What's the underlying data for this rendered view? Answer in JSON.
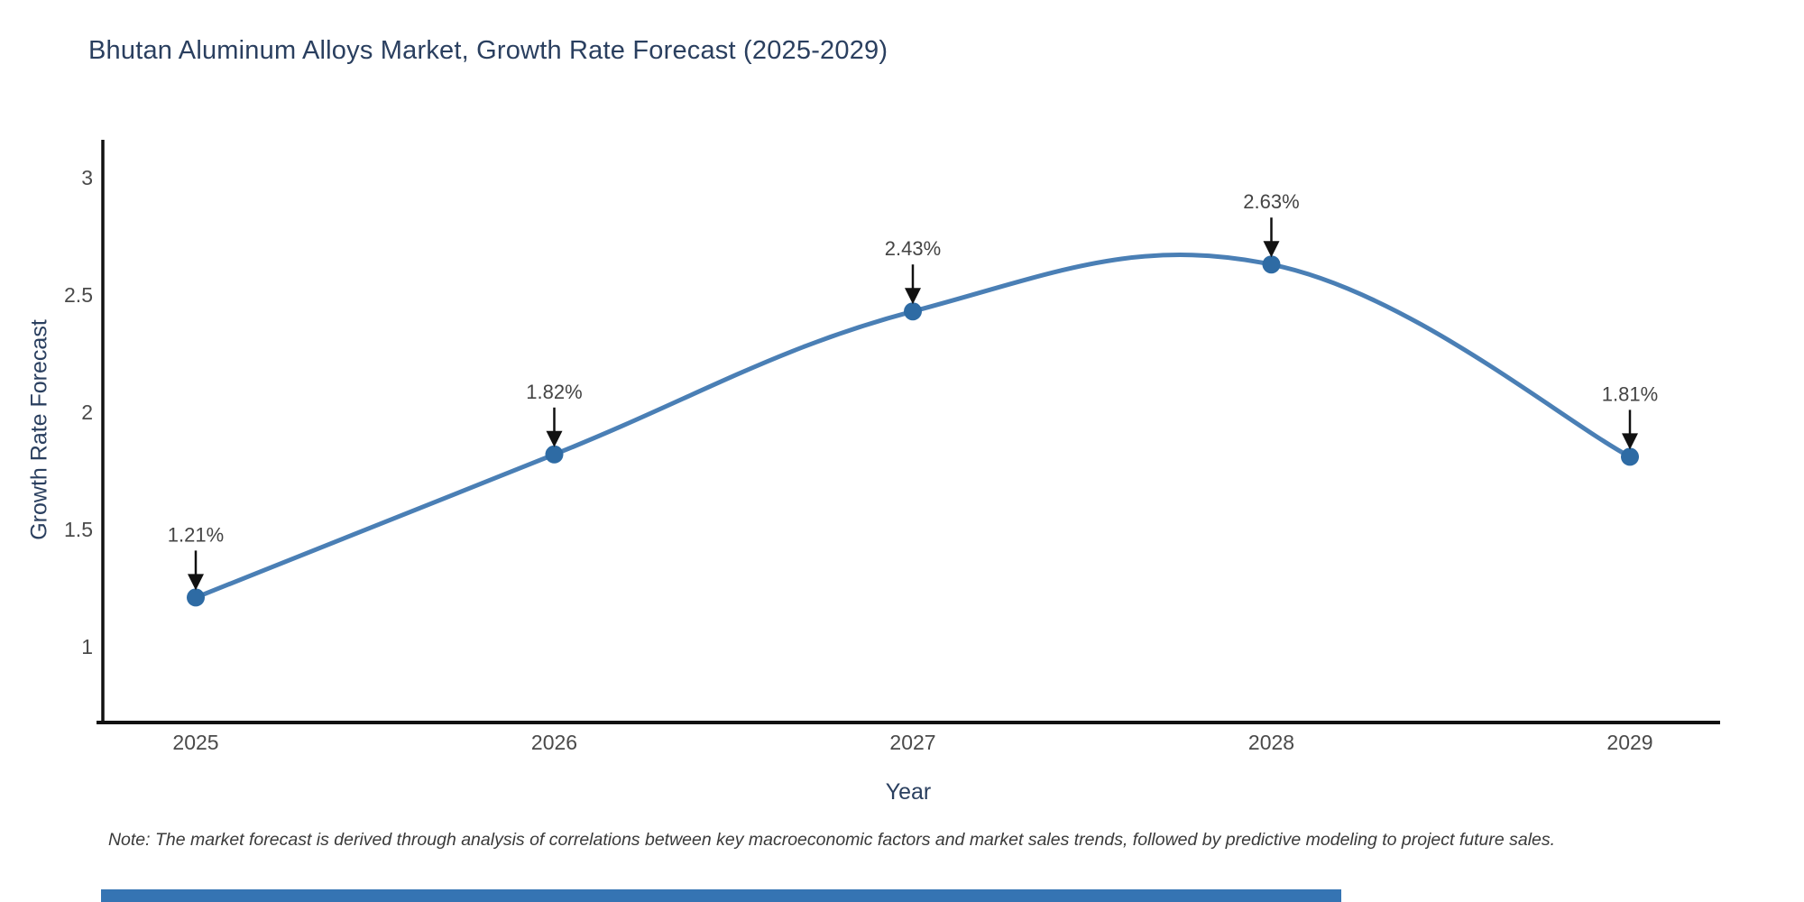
{
  "title": "Bhutan Aluminum Alloys Market, Growth Rate Forecast (2025-2029)",
  "note": "Note: The market forecast is derived through analysis of correlations between key macroeconomic factors and market sales trends, followed by predictive modeling to project future sales.",
  "chart_data": {
    "type": "line",
    "line_shape": "spline",
    "title": "Bhutan Aluminum Alloys Market, Growth Rate Forecast (2025-2029)",
    "xlabel": "Year",
    "ylabel": "Growth Rate Forecast",
    "x": [
      2025,
      2026,
      2027,
      2028,
      2029
    ],
    "values": [
      1.21,
      1.82,
      2.43,
      2.63,
      1.81
    ],
    "point_labels": [
      "1.21%",
      "1.82%",
      "2.43%",
      "2.63%",
      "1.81%"
    ],
    "xtick_labels": [
      "2025",
      "2026",
      "2027",
      "2028",
      "2029"
    ],
    "yticks": [
      1,
      1.5,
      2,
      2.5,
      3
    ],
    "ytick_labels": [
      "1",
      "1.5",
      "2",
      "2.5",
      "3"
    ],
    "xlim": [
      2024.74,
      2029.25
    ],
    "ylim": [
      0.68,
      3.16
    ],
    "grid": false,
    "legend": false,
    "annotations_have_arrows": true,
    "line_color": "#4a7fb5",
    "marker_color": "#2e6ba4",
    "axis_line_color": "#111111",
    "arrow_color": "#111111",
    "accent_bar_color": "#3574b3"
  }
}
